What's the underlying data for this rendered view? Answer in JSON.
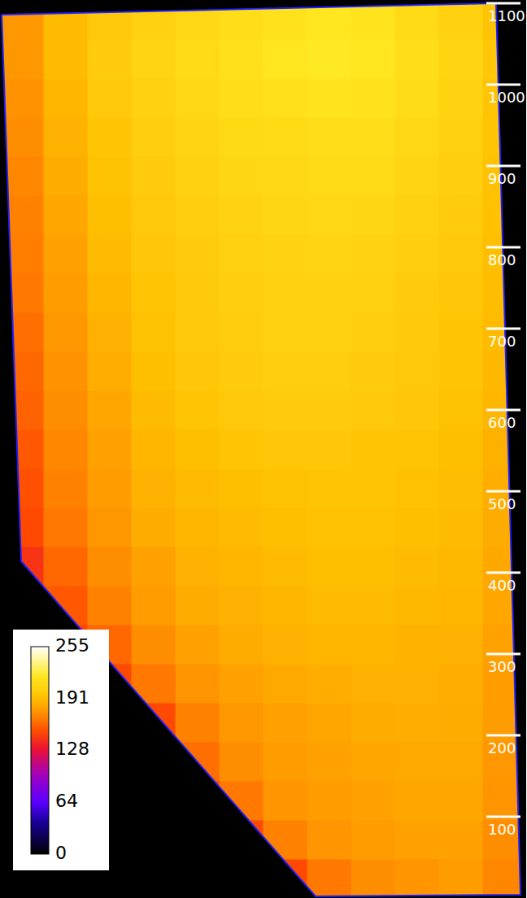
{
  "chart_data": {
    "type": "heatmap",
    "xlim": [
      0,
      648
    ],
    "ylim": [
      0,
      1104
    ],
    "yticks": [
      100,
      200,
      300,
      400,
      500,
      600,
      700,
      800,
      900,
      1000,
      1100
    ],
    "tick_labels": "y",
    "x_bins": [
      0,
      54,
      108,
      162,
      216,
      270,
      324,
      378,
      432,
      486,
      540,
      594,
      648
    ],
    "y_bins": [
      0,
      48,
      96,
      144,
      192,
      240,
      288,
      336,
      384,
      432,
      480,
      528,
      576,
      624,
      672,
      720,
      768,
      816,
      864,
      912,
      960,
      1008,
      1056,
      1104
    ],
    "cells": [
      [
        null,
        null,
        null,
        null,
        null,
        null,
        150,
        165,
        172,
        175,
        178,
        170
      ],
      [
        null,
        null,
        null,
        null,
        null,
        150,
        168,
        175,
        178,
        180,
        180,
        172
      ],
      [
        null,
        null,
        null,
        null,
        148,
        165,
        175,
        178,
        180,
        182,
        182,
        175
      ],
      [
        null,
        null,
        null,
        null,
        162,
        172,
        178,
        180,
        182,
        183,
        183,
        176
      ],
      [
        null,
        null,
        null,
        150,
        168,
        176,
        180,
        182,
        184,
        185,
        184,
        178
      ],
      [
        null,
        null,
        150,
        165,
        175,
        180,
        183,
        185,
        186,
        186,
        185,
        178
      ],
      [
        null,
        148,
        160,
        172,
        180,
        184,
        186,
        188,
        188,
        187,
        186,
        180
      ],
      [
        140,
        155,
        168,
        178,
        184,
        186,
        188,
        190,
        190,
        189,
        188,
        182
      ],
      [
        142,
        160,
        172,
        180,
        186,
        188,
        190,
        192,
        192,
        190,
        189,
        183
      ],
      [
        150,
        165,
        176,
        184,
        188,
        190,
        192,
        193,
        193,
        192,
        190,
        184
      ],
      [
        152,
        168,
        178,
        186,
        190,
        192,
        194,
        195,
        195,
        193,
        191,
        185
      ],
      [
        155,
        170,
        180,
        188,
        192,
        195,
        197,
        197,
        196,
        195,
        192,
        186
      ],
      [
        158,
        172,
        182,
        190,
        195,
        198,
        200,
        200,
        199,
        197,
        194,
        188
      ],
      [
        160,
        174,
        185,
        192,
        197,
        200,
        202,
        202,
        200,
        198,
        195,
        189
      ],
      [
        162,
        176,
        186,
        194,
        198,
        201,
        203,
        203,
        202,
        199,
        196,
        190
      ],
      [
        165,
        178,
        188,
        195,
        199,
        202,
        204,
        204,
        203,
        200,
        197,
        191
      ],
      [
        167,
        180,
        190,
        197,
        200,
        203,
        205,
        206,
        205,
        202,
        198,
        192
      ],
      [
        168,
        182,
        192,
        198,
        202,
        205,
        207,
        208,
        207,
        204,
        200,
        193
      ],
      [
        170,
        184,
        194,
        200,
        204,
        207,
        208,
        210,
        210,
        206,
        202,
        194
      ],
      [
        172,
        186,
        196,
        202,
        206,
        209,
        210,
        212,
        212,
        208,
        203,
        195
      ],
      [
        174,
        188,
        198,
        204,
        208,
        212,
        214,
        216,
        215,
        211,
        205,
        196
      ],
      [
        176,
        190,
        200,
        206,
        210,
        214,
        218,
        220,
        218,
        212,
        206,
        197
      ],
      [
        176,
        190,
        198,
        204,
        208,
        212,
        215,
        218,
        216,
        210,
        204,
        196
      ]
    ],
    "region": [
      [
        2,
        1086
      ],
      [
        610,
        1100
      ],
      [
        640,
        4
      ],
      [
        388,
        2
      ],
      [
        26,
        414
      ]
    ],
    "colorbar": {
      "range": [
        0,
        255
      ],
      "ticks": [
        0,
        64,
        128,
        191,
        255
      ]
    }
  }
}
